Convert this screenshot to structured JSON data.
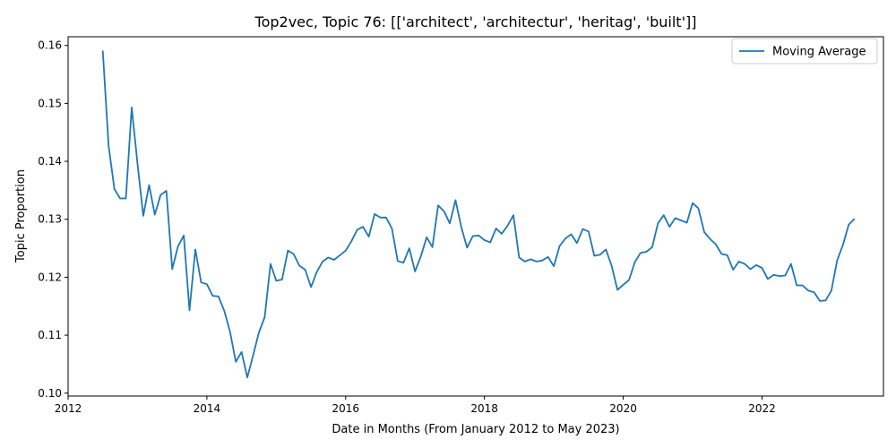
{
  "chart_data": {
    "type": "line",
    "title": "Top2vec, Topic 76: [['architect', 'architectur', 'heritag', 'built']]",
    "xlabel": "Date in Months (From January 2012 to May 2023)",
    "ylabel": "Topic Proportion",
    "xlim": [
      2012.0,
      2023.75
    ],
    "ylim": [
      0.0995,
      0.1615
    ],
    "x_ticks": [
      2012,
      2014,
      2016,
      2018,
      2020,
      2022
    ],
    "x_tick_labels": [
      "2012",
      "2014",
      "2016",
      "2018",
      "2020",
      "2022"
    ],
    "y_ticks": [
      0.1,
      0.11,
      0.12,
      0.13,
      0.14,
      0.15,
      0.16
    ],
    "y_tick_labels": [
      "0.10",
      "0.11",
      "0.12",
      "0.13",
      "0.14",
      "0.15",
      "0.16"
    ],
    "legend_position": "top-right",
    "grid": false,
    "color": "#1f77b4",
    "series": [
      {
        "name": "Moving Average",
        "x": [
          2012.5,
          2012.583,
          2012.667,
          2012.75,
          2012.833,
          2012.917,
          2013.0,
          2013.083,
          2013.167,
          2013.25,
          2013.333,
          2013.417,
          2013.5,
          2013.583,
          2013.667,
          2013.75,
          2013.833,
          2013.917,
          2014.0,
          2014.083,
          2014.167,
          2014.25,
          2014.333,
          2014.417,
          2014.5,
          2014.583,
          2014.667,
          2014.75,
          2014.833,
          2014.917,
          2015.0,
          2015.083,
          2015.167,
          2015.25,
          2015.333,
          2015.417,
          2015.5,
          2015.583,
          2015.667,
          2015.75,
          2015.833,
          2015.917,
          2016.0,
          2016.083,
          2016.167,
          2016.25,
          2016.333,
          2016.417,
          2016.5,
          2016.583,
          2016.667,
          2016.75,
          2016.833,
          2016.917,
          2017.0,
          2017.083,
          2017.167,
          2017.25,
          2017.333,
          2017.417,
          2017.5,
          2017.583,
          2017.667,
          2017.75,
          2017.833,
          2017.917,
          2018.0,
          2018.083,
          2018.167,
          2018.25,
          2018.333,
          2018.417,
          2018.5,
          2018.583,
          2018.667,
          2018.75,
          2018.833,
          2018.917,
          2019.0,
          2019.083,
          2019.167,
          2019.25,
          2019.333,
          2019.417,
          2019.5,
          2019.583,
          2019.667,
          2019.75,
          2019.833,
          2019.917,
          2020.0,
          2020.083,
          2020.167,
          2020.25,
          2020.333,
          2020.417,
          2020.5,
          2020.583,
          2020.667,
          2020.75,
          2020.833,
          2020.917,
          2021.0,
          2021.083,
          2021.167,
          2021.25,
          2021.333,
          2021.417,
          2021.5,
          2021.583,
          2021.667,
          2021.75,
          2021.833,
          2021.917,
          2022.0,
          2022.083,
          2022.167,
          2022.25,
          2022.333,
          2022.417,
          2022.5,
          2022.583,
          2022.667,
          2022.75,
          2022.833,
          2022.917,
          2023.0,
          2023.083,
          2023.167,
          2023.25,
          2023.333
        ],
        "values": [
          0.1591,
          0.1427,
          0.1352,
          0.1336,
          0.1336,
          0.1493,
          0.1397,
          0.1306,
          0.1359,
          0.1308,
          0.1342,
          0.1349,
          0.1214,
          0.1253,
          0.1272,
          0.1143,
          0.1248,
          0.1191,
          0.1188,
          0.1168,
          0.1167,
          0.1142,
          0.1106,
          0.1054,
          0.1071,
          0.1027,
          0.1066,
          0.1105,
          0.1131,
          0.1223,
          0.1194,
          0.1196,
          0.1246,
          0.124,
          0.122,
          0.1213,
          0.1183,
          0.1209,
          0.1227,
          0.1234,
          0.123,
          0.1238,
          0.1246,
          0.1262,
          0.1282,
          0.1287,
          0.127,
          0.1309,
          0.1303,
          0.1303,
          0.1284,
          0.1228,
          0.1225,
          0.125,
          0.121,
          0.1236,
          0.1269,
          0.1252,
          0.1324,
          0.1314,
          0.1293,
          0.1333,
          0.1286,
          0.1251,
          0.1271,
          0.1272,
          0.1264,
          0.126,
          0.1284,
          0.1275,
          0.1289,
          0.1307,
          0.1234,
          0.1227,
          0.1231,
          0.1227,
          0.1229,
          0.1235,
          0.1219,
          0.1254,
          0.1267,
          0.1274,
          0.1259,
          0.1283,
          0.1279,
          0.1237,
          0.1239,
          0.1248,
          0.122,
          0.1178,
          0.1187,
          0.1195,
          0.1226,
          0.1242,
          0.1244,
          0.1252,
          0.1293,
          0.1307,
          0.1287,
          0.1302,
          0.1298,
          0.1294,
          0.1328,
          0.1319,
          0.1278,
          0.1266,
          0.1257,
          0.124,
          0.1238,
          0.1213,
          0.1227,
          0.1223,
          0.1214,
          0.1221,
          0.1216,
          0.1197,
          0.1204,
          0.1202,
          0.1203,
          0.1223,
          0.1186,
          0.1186,
          0.1177,
          0.1174,
          0.1159,
          0.116,
          0.1177,
          0.1229,
          0.1256,
          0.1291,
          0.1301
        ]
      }
    ]
  }
}
